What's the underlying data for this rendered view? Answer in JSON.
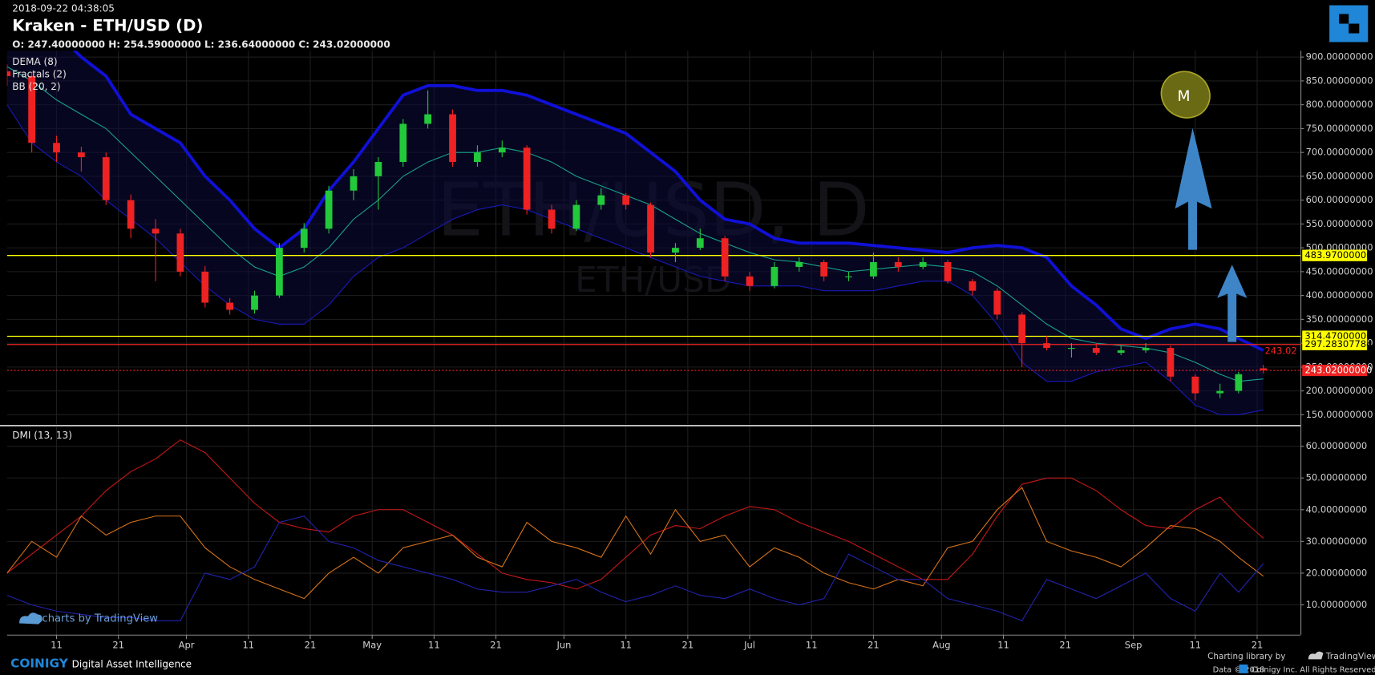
{
  "header": {
    "timestamp": "2018-09-22 04:38:05",
    "title": "Kraken - ETH/USD (D)",
    "ohlc": "O: 247.40000000 H: 254.59000000 L: 236.64000000 C: 243.02000000",
    "watermark": "ETH/USD, D",
    "watermark_small": "ETH/USD",
    "indicators": [
      "DEMA (8)",
      "Fractals (2)",
      "BB (20, 2)"
    ],
    "annotation": "M"
  },
  "footer": {
    "tv": "charts by TradingView",
    "brand": "COINIGY",
    "tagline": "Digital Asset Intelligence",
    "library": "Charting library by",
    "library_brand": "TradingView",
    "data": "Data © 2018",
    "rights": "Coinigy Inc. All Rights Reserved."
  },
  "chart_data": [
    {
      "type": "candlestick",
      "x": [
        "2018-03-03",
        "2018-03-07",
        "2018-03-11",
        "2018-03-15",
        "2018-03-19",
        "2018-03-23",
        "2018-03-27",
        "2018-03-31",
        "2018-04-04",
        "2018-04-08",
        "2018-04-12",
        "2018-04-16",
        "2018-04-20",
        "2018-04-24",
        "2018-04-28",
        "2018-05-02",
        "2018-05-06",
        "2018-05-10",
        "2018-05-14",
        "2018-05-18",
        "2018-05-22",
        "2018-05-26",
        "2018-05-30",
        "2018-06-03",
        "2018-06-07",
        "2018-06-11",
        "2018-06-15",
        "2018-06-19",
        "2018-06-23",
        "2018-06-27",
        "2018-07-01",
        "2018-07-05",
        "2018-07-09",
        "2018-07-13",
        "2018-07-17",
        "2018-07-21",
        "2018-07-25",
        "2018-07-29",
        "2018-08-02",
        "2018-08-06",
        "2018-08-10",
        "2018-08-14",
        "2018-08-18",
        "2018-08-22",
        "2018-08-26",
        "2018-08-30",
        "2018-09-03",
        "2018-09-07",
        "2018-09-11",
        "2018-09-15",
        "2018-09-18",
        "2018-09-22"
      ],
      "open": [
        870,
        860,
        720,
        700,
        690,
        600,
        540,
        530,
        450,
        385,
        370,
        400,
        500,
        540,
        620,
        650,
        680,
        760,
        780,
        680,
        700,
        710,
        580,
        540,
        590,
        610,
        590,
        490,
        500,
        520,
        440,
        420,
        460,
        470,
        440,
        440,
        470,
        460,
        470,
        430,
        410,
        360,
        300,
        290,
        290,
        280,
        285,
        290,
        230,
        195,
        200,
        247.4
      ],
      "high": [
        885,
        868,
        735,
        712,
        700,
        612,
        560,
        540,
        462,
        395,
        410,
        510,
        552,
        630,
        665,
        690,
        770,
        830,
        790,
        715,
        725,
        715,
        590,
        600,
        625,
        615,
        595,
        510,
        540,
        525,
        450,
        470,
        480,
        475,
        450,
        490,
        480,
        480,
        475,
        435,
        415,
        365,
        315,
        300,
        300,
        295,
        300,
        295,
        235,
        215,
        240,
        254.59
      ],
      "low": [
        840,
        700,
        680,
        660,
        590,
        520,
        430,
        440,
        375,
        360,
        362,
        395,
        490,
        530,
        600,
        580,
        670,
        750,
        670,
        670,
        690,
        570,
        530,
        535,
        580,
        580,
        480,
        470,
        495,
        430,
        410,
        415,
        450,
        430,
        430,
        435,
        450,
        455,
        425,
        400,
        350,
        250,
        285,
        270,
        275,
        275,
        280,
        220,
        180,
        185,
        195,
        236.64
      ],
      "close": [
        860,
        720,
        700,
        690,
        600,
        540,
        530,
        450,
        385,
        370,
        400,
        500,
        540,
        620,
        650,
        680,
        760,
        780,
        680,
        700,
        710,
        580,
        540,
        590,
        610,
        590,
        490,
        500,
        520,
        440,
        420,
        460,
        470,
        440,
        440,
        470,
        460,
        470,
        430,
        410,
        360,
        300,
        290,
        290,
        280,
        285,
        290,
        230,
        195,
        200,
        235,
        243.02
      ],
      "up_color": "#22c93a",
      "down_color": "#ee2222",
      "overlays": [
        {
          "color": "#1010d8",
          "width": 3.5,
          "values": [
            1000,
            980,
            950,
            900,
            860,
            780,
            750,
            720,
            650,
            600,
            540,
            500,
            540,
            620,
            680,
            750,
            820,
            840,
            840,
            830,
            830,
            820,
            800,
            780,
            760,
            740,
            700,
            660,
            600,
            560,
            550,
            520,
            510,
            510,
            510,
            505,
            500,
            495,
            490,
            500,
            505,
            500,
            480,
            420,
            380,
            330,
            310,
            330,
            340,
            330,
            310,
            285
          ]
        },
        {
          "color": "#1aa38a",
          "width": 1,
          "values": [
            880,
            850,
            810,
            780,
            750,
            700,
            650,
            600,
            550,
            500,
            460,
            440,
            460,
            500,
            560,
            600,
            650,
            680,
            700,
            700,
            710,
            700,
            680,
            650,
            630,
            610,
            590,
            560,
            530,
            510,
            490,
            475,
            470,
            460,
            450,
            455,
            460,
            465,
            460,
            450,
            420,
            380,
            340,
            310,
            300,
            295,
            290,
            280,
            260,
            235,
            220,
            225
          ]
        },
        {
          "color": "#1a1ab8",
          "width": 1,
          "values": [
            800,
            720,
            680,
            650,
            600,
            560,
            520,
            470,
            420,
            380,
            350,
            340,
            340,
            380,
            440,
            480,
            500,
            530,
            560,
            580,
            590,
            580,
            560,
            540,
            520,
            500,
            480,
            460,
            440,
            430,
            420,
            420,
            420,
            410,
            410,
            410,
            420,
            430,
            430,
            400,
            340,
            260,
            220,
            220,
            240,
            250,
            260,
            220,
            170,
            150,
            150,
            160
          ]
        }
      ],
      "hlines": [
        {
          "value": 483.97,
          "label": "483.97000000",
          "color": "#ffff00",
          "label_bg": "#ffff00",
          "label_color": "#000000"
        },
        {
          "value": 314.47,
          "label": "314.47000000",
          "color": "#ffff00",
          "label_bg": "#ffff00",
          "label_color": "#000000"
        },
        {
          "value": 297.28307784,
          "label": "297.28307784",
          "color": "#ee2222",
          "label_bg": "#ffff00",
          "label_color": "#000000"
        }
      ],
      "last_price": {
        "value": 243.02,
        "label": "243.02000000",
        "short_label": "243.02",
        "color": "#ee2222"
      },
      "xlim": [
        "2018-03-03",
        "2018-09-28"
      ],
      "xticks": [
        {
          "value": "2018-03-11",
          "label": "11"
        },
        {
          "value": "2018-03-21",
          "label": "21"
        },
        {
          "value": "2018-04-01",
          "label": "Apr"
        },
        {
          "value": "2018-04-11",
          "label": "11"
        },
        {
          "value": "2018-04-21",
          "label": "21"
        },
        {
          "value": "2018-05-01",
          "label": "May"
        },
        {
          "value": "2018-05-11",
          "label": "11"
        },
        {
          "value": "2018-05-21",
          "label": "21"
        },
        {
          "value": "2018-06-01",
          "label": "Jun"
        },
        {
          "value": "2018-06-11",
          "label": "11"
        },
        {
          "value": "2018-06-21",
          "label": "21"
        },
        {
          "value": "2018-07-01",
          "label": "Jul"
        },
        {
          "value": "2018-07-11",
          "label": "11"
        },
        {
          "value": "2018-07-21",
          "label": "21"
        },
        {
          "value": "2018-08-01",
          "label": "Aug"
        },
        {
          "value": "2018-08-11",
          "label": "11"
        },
        {
          "value": "2018-08-21",
          "label": "21"
        },
        {
          "value": "2018-09-01",
          "label": "Sep"
        },
        {
          "value": "2018-09-11",
          "label": "11"
        },
        {
          "value": "2018-09-21",
          "label": "21"
        }
      ],
      "ylim": [
        130,
        913
      ],
      "yticks": [
        {
          "value": 150,
          "label": "150.00000000"
        },
        {
          "value": 200,
          "label": "200.00000000"
        },
        {
          "value": 250,
          "label": "250.00000000"
        },
        {
          "value": 300,
          "label": "300.00000000"
        },
        {
          "value": 350,
          "label": "350.00000000"
        },
        {
          "value": 400,
          "label": "400.00000000"
        },
        {
          "value": 450,
          "label": "450.00000000"
        },
        {
          "value": 500,
          "label": "500.00000000"
        },
        {
          "value": 550,
          "label": "550.00000000"
        },
        {
          "value": 600,
          "label": "600.00000000"
        },
        {
          "value": 650,
          "label": "650.00000000"
        },
        {
          "value": 700,
          "label": "700.00000000"
        },
        {
          "value": 750,
          "label": "750.00000000"
        },
        {
          "value": 800,
          "label": "800.00000000"
        },
        {
          "value": 850,
          "label": "850.00000000"
        },
        {
          "value": 900,
          "label": "900.00000000"
        }
      ],
      "grid": true
    },
    {
      "type": "line",
      "title": "DMI (13, 13)",
      "x": [
        "2018-03-03",
        "2018-03-07",
        "2018-03-11",
        "2018-03-15",
        "2018-03-19",
        "2018-03-23",
        "2018-03-27",
        "2018-03-31",
        "2018-04-04",
        "2018-04-08",
        "2018-04-12",
        "2018-04-16",
        "2018-04-20",
        "2018-04-24",
        "2018-04-28",
        "2018-05-02",
        "2018-05-06",
        "2018-05-10",
        "2018-05-14",
        "2018-05-18",
        "2018-05-22",
        "2018-05-26",
        "2018-05-30",
        "2018-06-03",
        "2018-06-07",
        "2018-06-11",
        "2018-06-15",
        "2018-06-19",
        "2018-06-23",
        "2018-06-27",
        "2018-07-01",
        "2018-07-05",
        "2018-07-09",
        "2018-07-13",
        "2018-07-17",
        "2018-07-21",
        "2018-07-25",
        "2018-07-29",
        "2018-08-02",
        "2018-08-06",
        "2018-08-10",
        "2018-08-14",
        "2018-08-18",
        "2018-08-22",
        "2018-08-26",
        "2018-08-30",
        "2018-09-03",
        "2018-09-07",
        "2018-09-11",
        "2018-09-15",
        "2018-09-18",
        "2018-09-22"
      ],
      "series": [
        {
          "color": "#c81818",
          "values": [
            20,
            26,
            32,
            38,
            46,
            52,
            56,
            62,
            58,
            50,
            42,
            36,
            34,
            33,
            38,
            40,
            40,
            36,
            32,
            26,
            20,
            18,
            17,
            15,
            18,
            25,
            32,
            35,
            34,
            38,
            41,
            40,
            36,
            33,
            30,
            26,
            22,
            18,
            18,
            26,
            38,
            48,
            50,
            50,
            46,
            40,
            35,
            34,
            40,
            44,
            38,
            31
          ]
        },
        {
          "color": "#d8731a",
          "values": [
            20,
            30,
            25,
            38,
            32,
            36,
            38,
            38,
            28,
            22,
            18,
            15,
            12,
            20,
            25,
            20,
            28,
            30,
            32,
            25,
            22,
            36,
            30,
            28,
            25,
            38,
            26,
            40,
            30,
            32,
            22,
            28,
            25,
            20,
            17,
            15,
            18,
            16,
            28,
            30,
            40,
            47,
            30,
            27,
            25,
            22,
            28,
            35,
            34,
            30,
            25,
            19
          ]
        },
        {
          "color": "#2323b0",
          "values": [
            13,
            10,
            8,
            7,
            6,
            6,
            5,
            5,
            20,
            18,
            22,
            36,
            38,
            30,
            28,
            24,
            22,
            20,
            18,
            15,
            14,
            14,
            16,
            18,
            14,
            11,
            13,
            16,
            13,
            12,
            15,
            12,
            10,
            12,
            26,
            22,
            18,
            18,
            12,
            10,
            8,
            5,
            18,
            15,
            12,
            16,
            20,
            12,
            8,
            20,
            14,
            23
          ]
        }
      ],
      "ylim": [
        0.6,
        66.1
      ],
      "yticks": [
        {
          "value": 10,
          "label": "10.00000000"
        },
        {
          "value": 20,
          "label": "20.00000000"
        },
        {
          "value": 30,
          "label": "30.00000000"
        },
        {
          "value": 40,
          "label": "40.00000000"
        },
        {
          "value": 50,
          "label": "50.00000000"
        },
        {
          "value": 60,
          "label": "60.00000000"
        }
      ],
      "grid": true
    }
  ]
}
